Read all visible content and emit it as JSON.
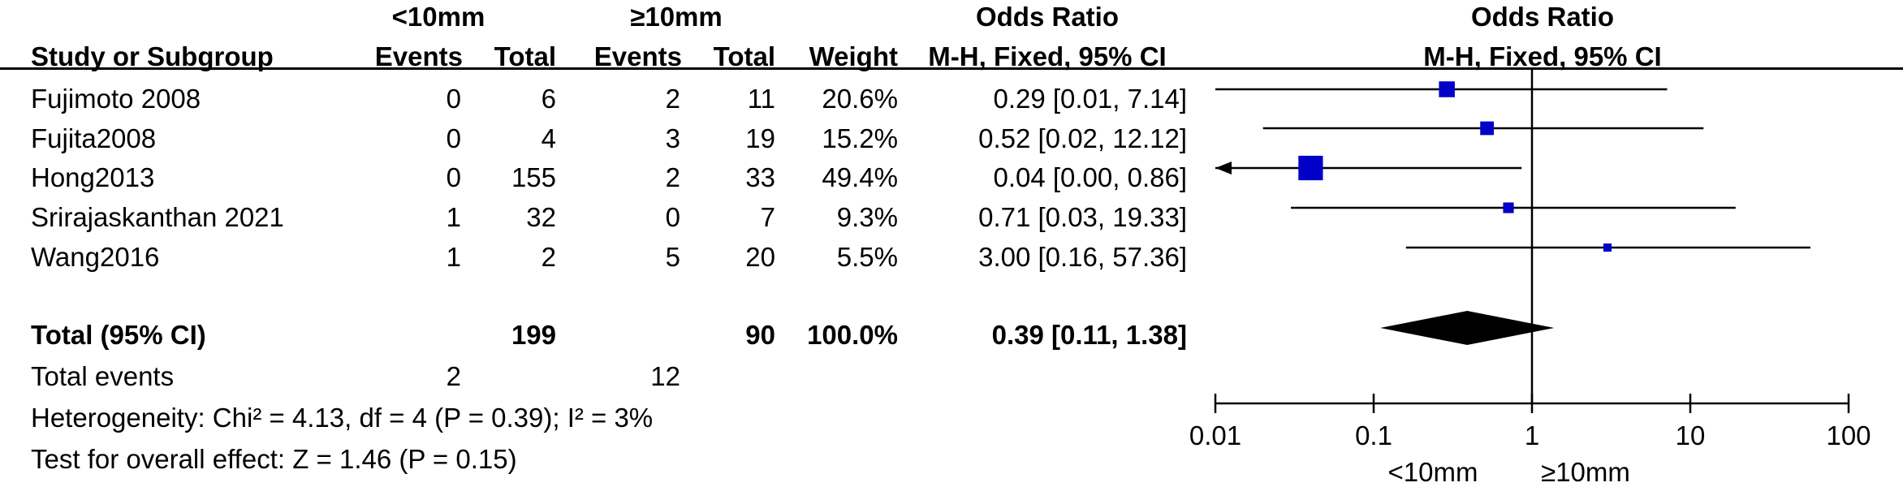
{
  "header": {
    "group1": "<10mm",
    "group2": "≥10mm",
    "study_col": "Study or Subgroup",
    "events": "Events",
    "total": "Total",
    "weight": "Weight",
    "or_title": "Odds Ratio",
    "or_method": "M-H, Fixed, 95% CI"
  },
  "studies": [
    {
      "name": "Fujimoto 2008",
      "e1": "0",
      "t1": "6",
      "e2": "2",
      "t2": "11",
      "weight": "20.6%",
      "ci_text": "0.29 [0.01, 7.14]"
    },
    {
      "name": "Fujita2008",
      "e1": "0",
      "t1": "4",
      "e2": "3",
      "t2": "19",
      "weight": "15.2%",
      "ci_text": "0.52 [0.02, 12.12]"
    },
    {
      "name": "Hong2013",
      "e1": "0",
      "t1": "155",
      "e2": "2",
      "t2": "33",
      "weight": "49.4%",
      "ci_text": "0.04 [0.00, 0.86]"
    },
    {
      "name": "Srirajaskanthan 2021",
      "e1": "1",
      "t1": "32",
      "e2": "0",
      "t2": "7",
      "weight": "9.3%",
      "ci_text": "0.71 [0.03, 19.33]"
    },
    {
      "name": "Wang2016",
      "e1": "1",
      "t1": "2",
      "e2": "5",
      "t2": "20",
      "weight": "5.5%",
      "ci_text": "3.00 [0.16, 57.36]"
    }
  ],
  "total": {
    "label": "Total (95% CI)",
    "t1": "199",
    "t2": "90",
    "weight": "100.0%",
    "ci_text": "0.39 [0.11, 1.38]"
  },
  "total_events": {
    "label": "Total events",
    "e1": "2",
    "e2": "12"
  },
  "heterogeneity": "Heterogeneity: Chi² = 4.13, df = 4 (P = 0.39); I² = 3%",
  "overall_effect": "Test for overall effect: Z = 1.46 (P = 0.15)",
  "colors": {
    "marker": "#0000c8",
    "line": "#000000"
  },
  "chart_data": {
    "type": "forest",
    "title": "Odds Ratio",
    "subtitle": "M-H, Fixed, 95% CI",
    "x_scale": "log",
    "xlim": [
      0.01,
      100
    ],
    "ticks": [
      0.01,
      0.1,
      1,
      10,
      100
    ],
    "tick_labels": [
      "0.01",
      "0.1",
      "1",
      "10",
      "100"
    ],
    "favours_left": "<10mm",
    "favours_right": "≥10mm",
    "studies": [
      {
        "name": "Fujimoto 2008",
        "or": 0.29,
        "lo": 0.01,
        "hi": 7.14,
        "weight": 20.6
      },
      {
        "name": "Fujita2008",
        "or": 0.52,
        "lo": 0.02,
        "hi": 12.12,
        "weight": 15.2
      },
      {
        "name": "Hong2013",
        "or": 0.04,
        "lo": 0.0,
        "hi": 0.86,
        "weight": 49.4
      },
      {
        "name": "Srirajaskanthan 2021",
        "or": 0.71,
        "lo": 0.03,
        "hi": 19.33,
        "weight": 9.3
      },
      {
        "name": "Wang2016",
        "or": 3.0,
        "lo": 0.16,
        "hi": 57.36,
        "weight": 5.5
      }
    ],
    "pooled": {
      "or": 0.39,
      "lo": 0.11,
      "hi": 1.38,
      "weight": 100.0
    }
  }
}
